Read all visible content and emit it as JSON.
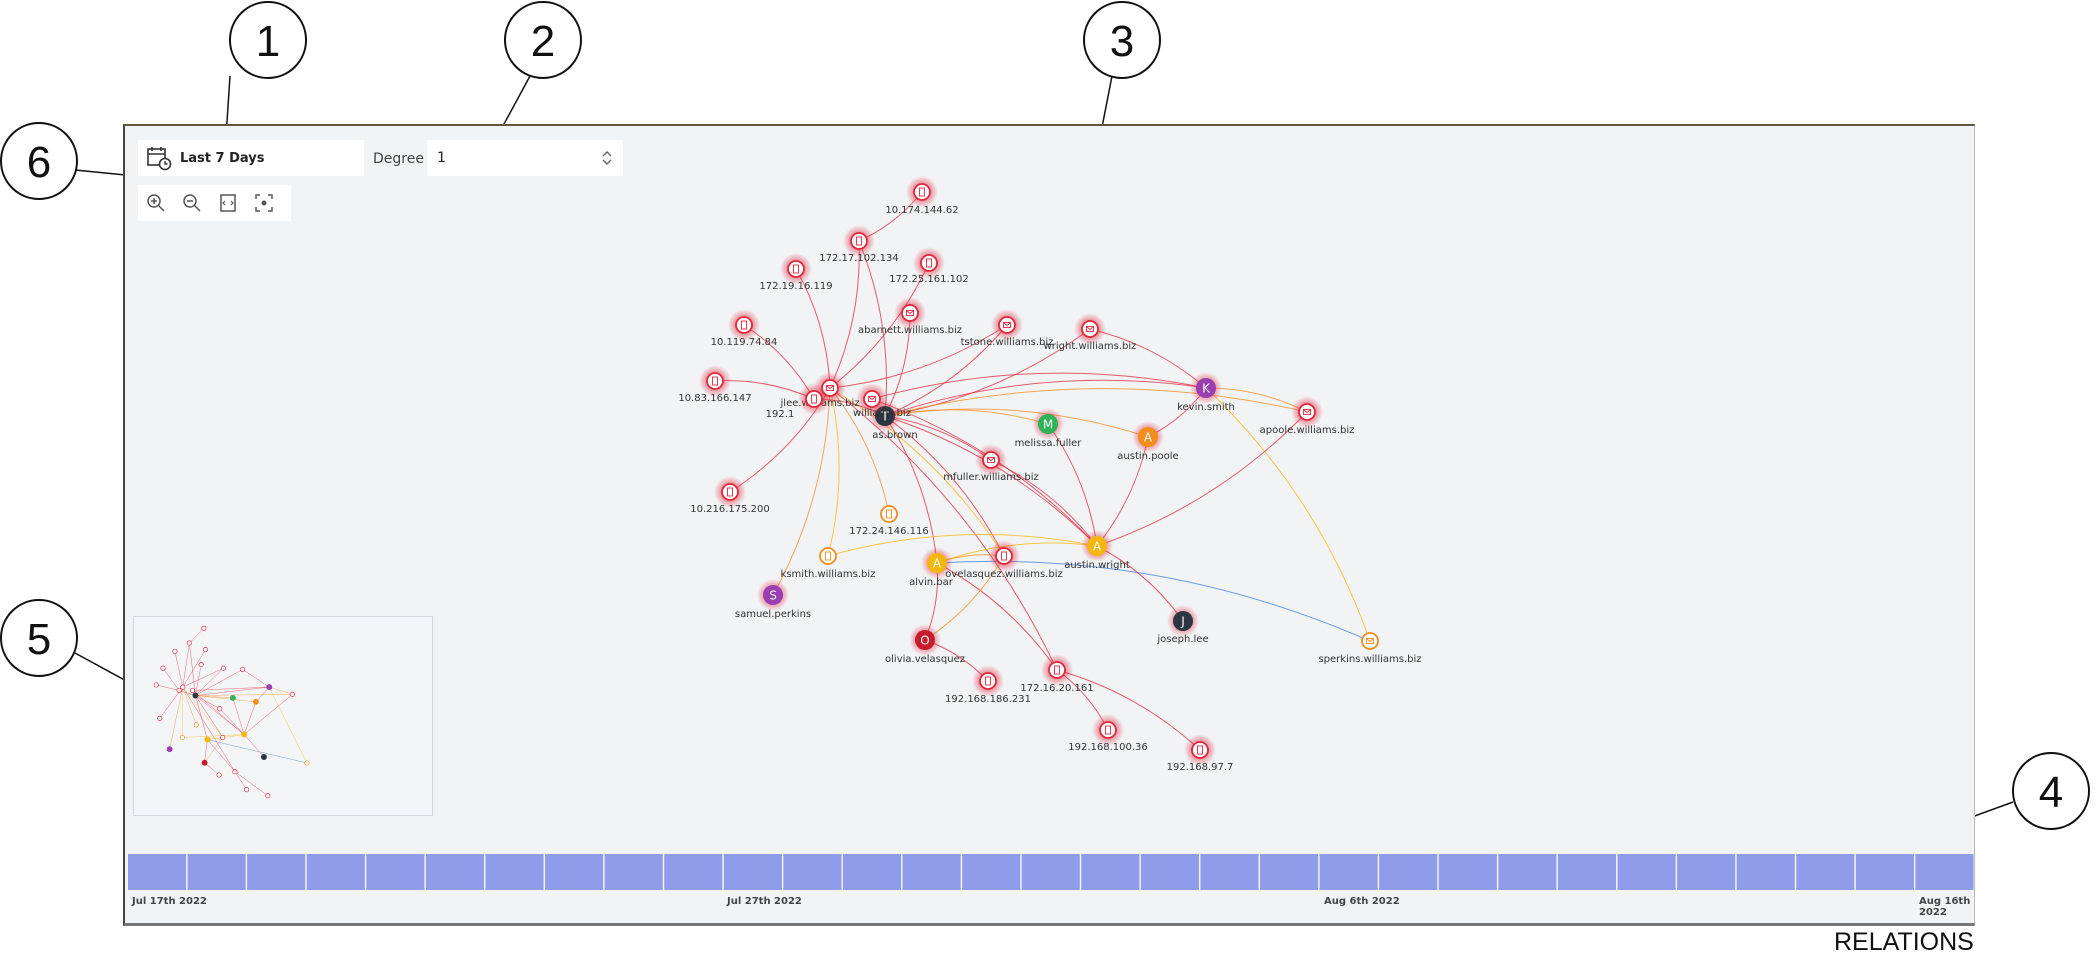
{
  "callouts": [
    "1",
    "2",
    "3",
    "4",
    "5",
    "6"
  ],
  "toolbar": {
    "date_range": "Last 7 Days",
    "degree_label": "Degree",
    "degree_value": "1"
  },
  "graph": {
    "nodes": [
      {
        "id": "n1",
        "label": "10.174.144.62",
        "kind": "device",
        "color": "#e0283c"
      },
      {
        "id": "n2",
        "label": "172.17.102.134",
        "kind": "device",
        "color": "#e0283c"
      },
      {
        "id": "n3",
        "label": "172.19.16.119",
        "kind": "device",
        "color": "#e0283c"
      },
      {
        "id": "n4",
        "label": "172.25.161.102",
        "kind": "device",
        "color": "#e0283c"
      },
      {
        "id": "n5",
        "label": "abarnett.williams.biz",
        "kind": "mail",
        "color": "#e0283c"
      },
      {
        "id": "n6",
        "label": "10.119.74.84",
        "kind": "device",
        "color": "#e0283c"
      },
      {
        "id": "n7",
        "label": "tstone.williams.biz",
        "kind": "mail",
        "color": "#e0283c"
      },
      {
        "id": "n8",
        "label": "wright.williams.biz",
        "kind": "mail",
        "color": "#e0283c"
      },
      {
        "id": "n9",
        "label": "10.83.166.147",
        "kind": "device",
        "color": "#e0283c"
      },
      {
        "id": "n10",
        "label": "jlee.williams.biz",
        "kind": "mail",
        "color": "#e0283c"
      },
      {
        "id": "n11",
        "label": "as.brown",
        "kind": "user",
        "letter": "T",
        "color": "#2c3640"
      },
      {
        "id": "n12",
        "label": "192.1",
        "kind": "device",
        "color": "#e0283c"
      },
      {
        "id": "n13",
        "label": "williams.biz",
        "kind": "mail",
        "color": "#e0283c"
      },
      {
        "id": "n14",
        "label": "kevin.smith",
        "kind": "user",
        "letter": "K",
        "color": "#9a3fb1"
      },
      {
        "id": "n15",
        "label": "melissa.fuller",
        "kind": "user",
        "letter": "M",
        "color": "#2fb356"
      },
      {
        "id": "n16",
        "label": "austin.poole",
        "kind": "user",
        "letter": "A",
        "color": "#f28c1c"
      },
      {
        "id": "n17",
        "label": "apoole.williams.biz",
        "kind": "mail",
        "color": "#e0283c"
      },
      {
        "id": "n18",
        "label": "mfuller.williams.biz",
        "kind": "mail",
        "color": "#e0283c"
      },
      {
        "id": "n19",
        "label": "10.216.175.200",
        "kind": "device",
        "color": "#e0283c"
      },
      {
        "id": "n20",
        "label": "172.24.146.116",
        "kind": "device",
        "color": "#f28c1c"
      },
      {
        "id": "n21",
        "label": "ksmith.williams.biz",
        "kind": "device",
        "color": "#f28c1c"
      },
      {
        "id": "n22",
        "label": "alvin.bar",
        "kind": "user",
        "letter": "A",
        "color": "#f5b70e"
      },
      {
        "id": "n23",
        "label": "ovelasquez.williams.biz",
        "kind": "device",
        "color": "#e0283c"
      },
      {
        "id": "n24",
        "label": "austin.wright",
        "kind": "user",
        "letter": "A",
        "color": "#f5b70e"
      },
      {
        "id": "n25",
        "label": "joseph.lee",
        "kind": "user",
        "letter": "J",
        "color": "#2c3640"
      },
      {
        "id": "n26",
        "label": "samuel.perkins",
        "kind": "user",
        "letter": "S",
        "color": "#9a3fb1"
      },
      {
        "id": "n27",
        "label": "olivia.velasquez",
        "kind": "user",
        "letter": "O",
        "color": "#c51b2a"
      },
      {
        "id": "n28",
        "label": "sperkins.williams.biz",
        "kind": "mail",
        "color": "#f28c1c"
      },
      {
        "id": "n29",
        "label": "192.168.186.231",
        "kind": "device",
        "color": "#e0283c"
      },
      {
        "id": "n30",
        "label": "172.16.20.161",
        "kind": "device",
        "color": "#e0283c"
      },
      {
        "id": "n31",
        "label": "192.168.100.36",
        "kind": "device",
        "color": "#e0283c"
      },
      {
        "id": "n32",
        "label": "192.168.97.7",
        "kind": "device",
        "color": "#e0283c"
      }
    ],
    "edges": [
      [
        "n1",
        "n2",
        "#e0283c"
      ],
      [
        "n2",
        "n10",
        "#e0283c"
      ],
      [
        "n2",
        "n11",
        "#e0283c"
      ],
      [
        "n3",
        "n10",
        "#e0283c"
      ],
      [
        "n4",
        "n10",
        "#e0283c"
      ],
      [
        "n5",
        "n11",
        "#e0283c"
      ],
      [
        "n6",
        "n12",
        "#e0283c"
      ],
      [
        "n7",
        "n11",
        "#e0283c"
      ],
      [
        "n7",
        "n10",
        "#e0283c"
      ],
      [
        "n8",
        "n11",
        "#e0283c"
      ],
      [
        "n8",
        "n14",
        "#e0283c"
      ],
      [
        "n9",
        "n12",
        "#e0283c"
      ],
      [
        "n11",
        "n14",
        "#e0283c"
      ],
      [
        "n11",
        "n15",
        "#f28c1c"
      ],
      [
        "n11",
        "n16",
        "#f28c1c"
      ],
      [
        "n11",
        "n17",
        "#f28c1c"
      ],
      [
        "n11",
        "n18",
        "#e0283c"
      ],
      [
        "n11",
        "n24",
        "#e0283c"
      ],
      [
        "n11",
        "n23",
        "#e0283c"
      ],
      [
        "n11",
        "n22",
        "#e0283c"
      ],
      [
        "n10",
        "n19",
        "#e0283c"
      ],
      [
        "n10",
        "n20",
        "#f28c1c"
      ],
      [
        "n10",
        "n21",
        "#f5b70e"
      ],
      [
        "n10",
        "n26",
        "#f28c1c"
      ],
      [
        "n10",
        "n23",
        "#f5b70e"
      ],
      [
        "n10",
        "n30",
        "#e0283c"
      ],
      [
        "n14",
        "n16",
        "#e0283c"
      ],
      [
        "n14",
        "n17",
        "#f28c1c"
      ],
      [
        "n14",
        "n28",
        "#f5b70e"
      ],
      [
        "n16",
        "n24",
        "#e0283c"
      ],
      [
        "n15",
        "n24",
        "#e0283c"
      ],
      [
        "n17",
        "n24",
        "#e0283c"
      ],
      [
        "n18",
        "n24",
        "#e0283c"
      ],
      [
        "n22",
        "n23",
        "#f28c1c"
      ],
      [
        "n22",
        "n24",
        "#f5b70e"
      ],
      [
        "n22",
        "n28",
        "#3a7fd4"
      ],
      [
        "n21",
        "n24",
        "#f5b70e"
      ],
      [
        "n24",
        "n25",
        "#e0283c"
      ],
      [
        "n22",
        "n27",
        "#e0283c"
      ],
      [
        "n27",
        "n29",
        "#e0283c"
      ],
      [
        "n22",
        "n30",
        "#e0283c"
      ],
      [
        "n30",
        "n31",
        "#e0283c"
      ],
      [
        "n30",
        "n32",
        "#e0283c"
      ],
      [
        "n23",
        "n27",
        "#f28c1c"
      ],
      [
        "n13",
        "n24",
        "#e0283c"
      ],
      [
        "n13",
        "n14",
        "#e0283c"
      ],
      [
        "n12",
        "n11",
        "#e0283c"
      ]
    ]
  },
  "timeline": {
    "segments": 31,
    "color": "#8f9cea",
    "labels": [
      "Jul 17th 2022",
      "Jul 27th 2022",
      "Aug 6th 2022",
      "Aug 16th 2022"
    ]
  },
  "caption": "RELATIONS"
}
